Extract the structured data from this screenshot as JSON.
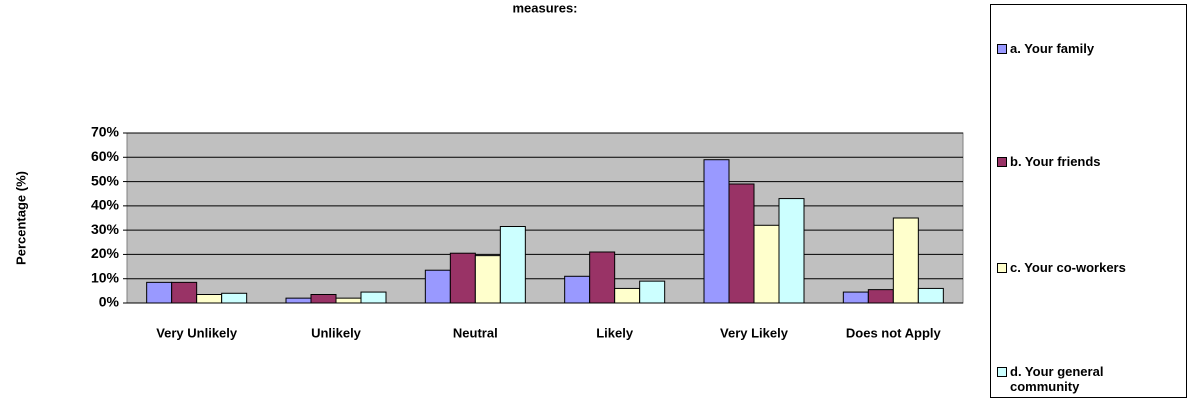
{
  "chart_data": {
    "type": "bar",
    "title": "measures:",
    "y_label": "Percentage (%)",
    "categories": [
      "Very Unlikely",
      "Unlikely",
      "Neutral",
      "Likely",
      "Very Likely",
      "Does not Apply"
    ],
    "series": [
      {
        "name": "a. Your family",
        "color": "#9999ff",
        "values": [
          8.5,
          2,
          13.5,
          11,
          59,
          4.5
        ]
      },
      {
        "name": "b. Your friends",
        "color": "#993366",
        "values": [
          8.5,
          3.5,
          20.5,
          21,
          49,
          5.5
        ]
      },
      {
        "name": "c. Your co-workers",
        "color": "#ffffcc",
        "values": [
          3.5,
          2,
          19.5,
          6,
          32,
          35
        ]
      },
      {
        "name": "d. Your general community",
        "color": "#ccffff",
        "values": [
          4,
          4.5,
          31.5,
          9,
          43,
          6
        ]
      }
    ],
    "ylim": [
      0,
      70
    ],
    "yticks": [
      {
        "value": 0,
        "label": "0%"
      },
      {
        "value": 10,
        "label": "10%"
      },
      {
        "value": 20,
        "label": "20%"
      },
      {
        "value": 30,
        "label": "30%"
      },
      {
        "value": 40,
        "label": "40%"
      },
      {
        "value": 50,
        "label": "50%"
      },
      {
        "value": 60,
        "label": "60%"
      },
      {
        "value": 70,
        "label": "70%"
      }
    ],
    "grid": true,
    "plot_background": "#c0c0c0",
    "legend": "right"
  }
}
